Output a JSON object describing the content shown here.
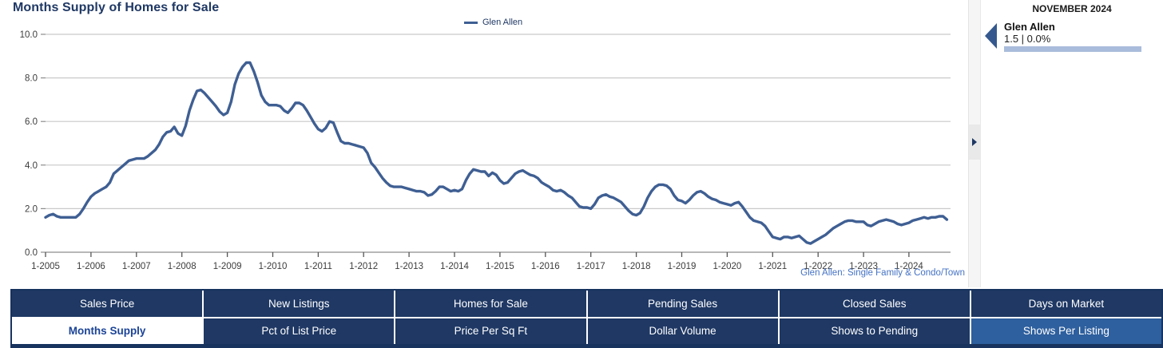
{
  "header": {
    "title": "Months Supply of Homes for Sale"
  },
  "legend": {
    "items": [
      {
        "label": "Glen Allen",
        "color": "#3F5F93"
      }
    ]
  },
  "chart_data": {
    "type": "line",
    "title": "Months Supply of Homes for Sale",
    "x_interval": "monthly",
    "x_start": "2005-01",
    "x_end": "2024-11",
    "x_tick_labels": [
      "1-2005",
      "1-2006",
      "1-2007",
      "1-2008",
      "1-2009",
      "1-2010",
      "1-2011",
      "1-2012",
      "1-2013",
      "1-2014",
      "1-2015",
      "1-2016",
      "1-2017",
      "1-2018",
      "1-2019",
      "1-2020",
      "1-2021",
      "1-2022",
      "1-2023",
      "1-2024"
    ],
    "ylim": [
      0,
      10
    ],
    "y_ticks": [
      0,
      2,
      4,
      6,
      8,
      10
    ],
    "y_tick_labels": [
      "0.0",
      "2.0",
      "4.0",
      "6.0",
      "8.0",
      "10.0"
    ],
    "grid": true,
    "legend_position": "top-center",
    "series": [
      {
        "name": "Glen Allen",
        "color": "#3F5F93",
        "values": [
          1.6,
          1.7,
          1.75,
          1.65,
          1.6,
          1.6,
          1.6,
          1.6,
          1.6,
          1.75,
          2.0,
          2.3,
          2.55,
          2.7,
          2.8,
          2.9,
          3.0,
          3.2,
          3.6,
          3.75,
          3.9,
          4.05,
          4.2,
          4.25,
          4.3,
          4.3,
          4.3,
          4.4,
          4.55,
          4.7,
          4.95,
          5.3,
          5.5,
          5.55,
          5.75,
          5.45,
          5.35,
          5.8,
          6.5,
          7.0,
          7.4,
          7.45,
          7.3,
          7.1,
          6.9,
          6.7,
          6.45,
          6.3,
          6.4,
          6.9,
          7.7,
          8.2,
          8.5,
          8.7,
          8.7,
          8.3,
          7.8,
          7.2,
          6.9,
          6.75,
          6.75,
          6.75,
          6.7,
          6.5,
          6.4,
          6.6,
          6.85,
          6.85,
          6.75,
          6.5,
          6.2,
          5.9,
          5.65,
          5.55,
          5.7,
          6.0,
          5.95,
          5.5,
          5.1,
          5.0,
          5.0,
          4.95,
          4.9,
          4.85,
          4.8,
          4.55,
          4.1,
          3.9,
          3.65,
          3.4,
          3.2,
          3.05,
          3.0,
          3.0,
          3.0,
          2.95,
          2.9,
          2.85,
          2.8,
          2.8,
          2.75,
          2.6,
          2.65,
          2.8,
          3.0,
          3.0,
          2.9,
          2.8,
          2.85,
          2.8,
          2.9,
          3.3,
          3.6,
          3.8,
          3.75,
          3.7,
          3.7,
          3.5,
          3.65,
          3.55,
          3.3,
          3.15,
          3.2,
          3.4,
          3.6,
          3.7,
          3.75,
          3.65,
          3.55,
          3.5,
          3.4,
          3.2,
          3.1,
          3.0,
          2.85,
          2.8,
          2.85,
          2.75,
          2.6,
          2.5,
          2.3,
          2.1,
          2.05,
          2.05,
          2.0,
          2.2,
          2.5,
          2.6,
          2.65,
          2.55,
          2.5,
          2.4,
          2.3,
          2.1,
          1.9,
          1.75,
          1.7,
          1.8,
          2.1,
          2.5,
          2.8,
          3.0,
          3.1,
          3.1,
          3.05,
          2.9,
          2.6,
          2.4,
          2.35,
          2.25,
          2.4,
          2.6,
          2.75,
          2.8,
          2.7,
          2.55,
          2.45,
          2.4,
          2.3,
          2.25,
          2.2,
          2.15,
          2.25,
          2.3,
          2.1,
          1.85,
          1.6,
          1.45,
          1.4,
          1.35,
          1.2,
          0.95,
          0.7,
          0.65,
          0.6,
          0.7,
          0.7,
          0.65,
          0.7,
          0.75,
          0.6,
          0.45,
          0.4,
          0.5,
          0.6,
          0.7,
          0.8,
          0.95,
          1.1,
          1.2,
          1.3,
          1.4,
          1.45,
          1.45,
          1.4,
          1.4,
          1.4,
          1.25,
          1.2,
          1.3,
          1.4,
          1.45,
          1.5,
          1.45,
          1.4,
          1.3,
          1.25,
          1.3,
          1.35,
          1.45,
          1.5,
          1.55,
          1.6,
          1.55,
          1.6,
          1.6,
          1.65,
          1.65,
          1.5
        ]
      }
    ]
  },
  "caption": "Glen Allen: Single Family & Condo/Town",
  "side_panel": {
    "period_label": "NOVEMBER 2024",
    "entries": [
      {
        "name": "Glen Allen",
        "value": "1.5 | 0.0%"
      }
    ]
  },
  "nav": {
    "rows": [
      [
        "Sales Price",
        "New Listings",
        "Homes for Sale",
        "Pending Sales",
        "Closed Sales",
        "Days on Market"
      ],
      [
        "Months Supply",
        "Pct of List Price",
        "Price Per Sq Ft",
        "Dollar Volume",
        "Shows to Pending",
        "Shows Per Listing"
      ]
    ],
    "active_label": "Months Supply",
    "highlighted_label": "Shows Per Listing"
  },
  "colors": {
    "accent_navy": "#1F3864",
    "nav_active_text": "#1B4397",
    "nav_highlight_blue": "#2E5F9E",
    "series_line": "#3F5F93",
    "caption_blue": "#4472C4",
    "sidebar_bar": "#A9BCDB",
    "grid_gray": "#C9C9C9"
  }
}
